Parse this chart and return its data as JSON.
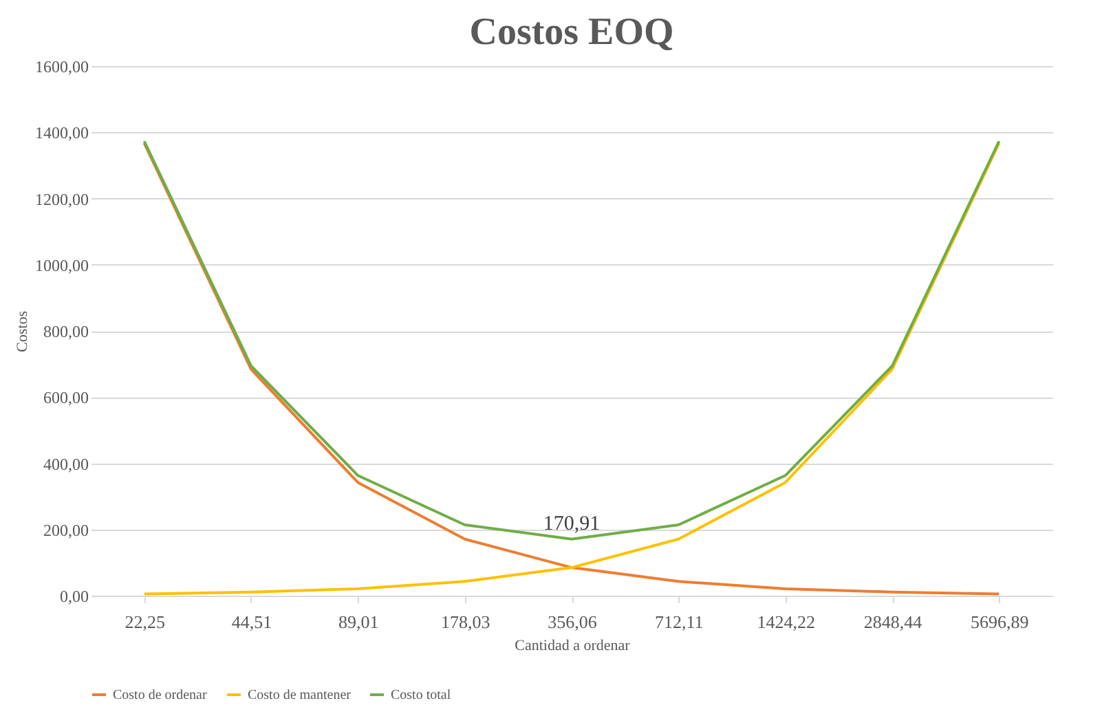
{
  "chart_data": {
    "type": "line",
    "title": "Costos EOQ",
    "xlabel": "Cantidad a ordenar",
    "ylabel": "Costos",
    "categories": [
      "22,25",
      "44,51",
      "89,01",
      "178,03",
      "356,06",
      "712,11",
      "1424,22",
      "2848,44",
      "5696,89"
    ],
    "series": [
      {
        "name": "Costo de ordenar",
        "color": "#ed7d31",
        "values": [
          1367,
          684,
          342,
          171,
          85,
          43,
          21,
          11,
          5
        ]
      },
      {
        "name": "Costo de mantener",
        "color": "#ffc000",
        "values": [
          5,
          11,
          21,
          43,
          85,
          171,
          342,
          684,
          1367
        ]
      },
      {
        "name": "Costo total",
        "color": "#70ad47",
        "values": [
          1373,
          694,
          363,
          214,
          170.91,
          214,
          363,
          694,
          1373
        ],
        "value_labels": [
          null,
          null,
          null,
          null,
          "170,91",
          null,
          null,
          null,
          null
        ]
      }
    ],
    "ylim": [
      0,
      1600
    ],
    "yticks": [
      {
        "value": 0,
        "label": "0,00"
      },
      {
        "value": 200,
        "label": "200,00"
      },
      {
        "value": 400,
        "label": "400,00"
      },
      {
        "value": 600,
        "label": "600,00"
      },
      {
        "value": 800,
        "label": "800,00"
      },
      {
        "value": 1000,
        "label": "1000,00"
      },
      {
        "value": 1200,
        "label": "1200,00"
      },
      {
        "value": 1400,
        "label": "1400,00"
      },
      {
        "value": 1600,
        "label": "1600,00"
      }
    ],
    "grid": "y",
    "legend": "bottom",
    "marker": "none",
    "line_style": "solid"
  }
}
